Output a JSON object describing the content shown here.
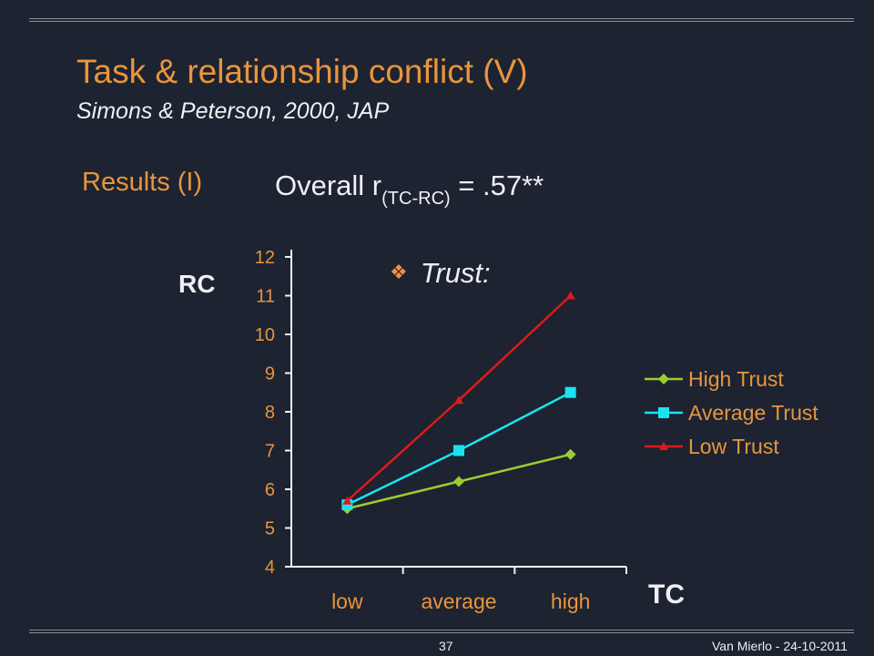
{
  "slide": {
    "title": "Task & relationship conflict (V)",
    "subtitle": "Simons & Peterson, 2000, JAP",
    "results_label": "Results  (I)",
    "overall_prefix": "Overall  r",
    "overall_sub": "(TC-RC)",
    "overall_suffix": " = .57**",
    "annotation": "Trust:",
    "bullet_icon": "diamond-bullet-icon"
  },
  "footer": {
    "page_number": "37",
    "credit": "Van Mierlo - 24-10-2011"
  },
  "colors": {
    "background": "#1d2330",
    "accent": "#e8953d",
    "text": "#eef0f3"
  },
  "chart_data": {
    "type": "line",
    "categories": [
      "low",
      "average",
      "high"
    ],
    "ylabel": "RC",
    "xlabel": "TC",
    "ylim": [
      4,
      12
    ],
    "yticks": [
      4,
      5,
      6,
      7,
      8,
      9,
      10,
      11,
      12
    ],
    "grid": false,
    "legend_position": "right",
    "series": [
      {
        "name": "High Trust",
        "values": [
          5.5,
          6.2,
          6.9
        ],
        "color": "#9acd32",
        "marker": "diamond"
      },
      {
        "name": "Average Trust",
        "values": [
          5.6,
          7.0,
          8.5
        ],
        "color": "#19e3f0",
        "marker": "square"
      },
      {
        "name": "Low Trust",
        "values": [
          5.7,
          8.3,
          11.0
        ],
        "color": "#dd1a1a",
        "marker": "triangle"
      }
    ]
  }
}
